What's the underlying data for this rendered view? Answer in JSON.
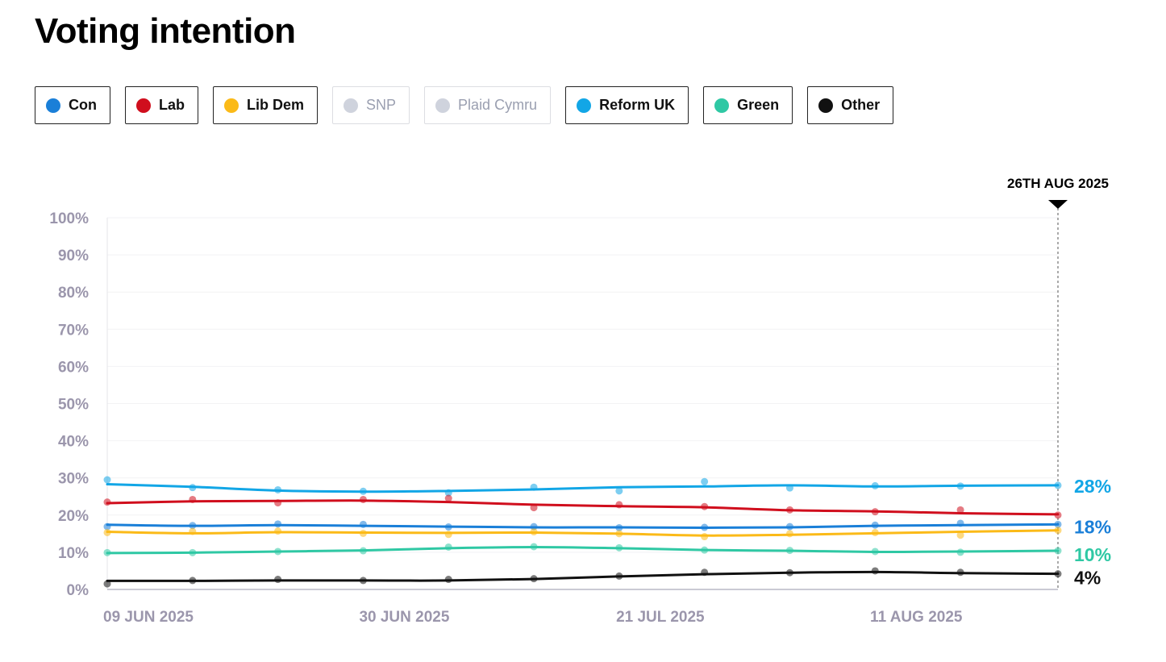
{
  "title": "Voting intention",
  "legend": [
    {
      "key": "con",
      "label": "Con",
      "color": "#1a7fd8",
      "active": true
    },
    {
      "key": "lab",
      "label": "Lab",
      "color": "#d00e1d",
      "active": true
    },
    {
      "key": "libdem",
      "label": "Lib Dem",
      "color": "#fbba18",
      "active": true
    },
    {
      "key": "snp",
      "label": "SNP",
      "color": "#cfd3dd",
      "active": false
    },
    {
      "key": "plaid",
      "label": "Plaid Cymru",
      "color": "#cfd3dd",
      "active": false
    },
    {
      "key": "reform",
      "label": "Reform UK",
      "color": "#12a6e6",
      "active": true
    },
    {
      "key": "green",
      "label": "Green",
      "color": "#2fc8a4",
      "active": true
    },
    {
      "key": "other",
      "label": "Other",
      "color": "#111111",
      "active": true
    }
  ],
  "chart_data": {
    "type": "line",
    "title": "",
    "xlabel": "",
    "ylabel": "",
    "ylim": [
      0,
      100
    ],
    "yticks": [
      "0%",
      "10%",
      "20%",
      "30%",
      "40%",
      "50%",
      "60%",
      "70%",
      "80%",
      "90%",
      "100%"
    ],
    "x_range": [
      "2025-06-09",
      "2025-08-26"
    ],
    "xticks": [
      {
        "date": "2025-06-09",
        "label": "09 JUN 2025"
      },
      {
        "date": "2025-06-30",
        "label": "30 JUN 2025"
      },
      {
        "date": "2025-07-21",
        "label": "21 JUL 2025"
      },
      {
        "date": "2025-08-11",
        "label": "11 AUG 2025"
      }
    ],
    "marker": {
      "date": "2025-08-26",
      "label": "26TH AUG 2025"
    },
    "x": [
      "2025-06-09",
      "2025-06-16",
      "2025-06-23",
      "2025-06-30",
      "2025-07-07",
      "2025-07-14",
      "2025-07-21",
      "2025-07-28",
      "2025-08-04",
      "2025-08-11",
      "2025-08-18",
      "2025-08-26"
    ],
    "series": [
      {
        "key": "reform",
        "color": "#12a6e6",
        "end_label": "28%",
        "trend": [
          28.3,
          27.6,
          26.6,
          26.3,
          26.5,
          26.9,
          27.5,
          27.7,
          28.0,
          27.7,
          27.9,
          28.0
        ],
        "points": [
          29.5,
          27.4,
          26.8,
          26.4,
          26.0,
          27.5,
          26.5,
          29.0,
          27.3,
          27.9,
          27.8,
          28.0
        ]
      },
      {
        "key": "lab",
        "color": "#d00e1d",
        "end_label": "",
        "trend": [
          23.2,
          23.7,
          23.8,
          23.9,
          23.5,
          22.8,
          22.4,
          22.1,
          21.3,
          21.0,
          20.5,
          20.2
        ],
        "points": [
          23.5,
          24.2,
          23.3,
          24.2,
          24.5,
          22.0,
          22.8,
          22.3,
          21.4,
          20.9,
          21.4,
          20.0
        ]
      },
      {
        "key": "con",
        "color": "#1a7fd8",
        "end_label": "18%",
        "trend": [
          17.4,
          17.1,
          17.3,
          17.1,
          16.9,
          16.7,
          16.7,
          16.6,
          16.7,
          17.1,
          17.3,
          17.5
        ],
        "points": [
          16.9,
          17.2,
          17.6,
          17.5,
          16.8,
          16.9,
          16.6,
          16.7,
          16.9,
          17.3,
          17.8,
          17.5
        ]
      },
      {
        "key": "libdem",
        "color": "#fbba18",
        "end_label": "",
        "trend": [
          15.5,
          15.1,
          15.4,
          15.3,
          15.2,
          15.3,
          15.0,
          14.5,
          14.7,
          15.1,
          15.5,
          15.9
        ],
        "points": [
          15.3,
          15.6,
          15.7,
          15.1,
          14.8,
          15.5,
          15.0,
          14.2,
          15.0,
          15.3,
          14.6,
          15.9
        ]
      },
      {
        "key": "green",
        "color": "#2fc8a4",
        "end_label": "10%",
        "trend": [
          9.8,
          9.9,
          10.2,
          10.5,
          11.1,
          11.4,
          11.1,
          10.6,
          10.4,
          10.1,
          10.2,
          10.4
        ],
        "points": [
          9.9,
          9.9,
          10.2,
          10.4,
          11.4,
          11.5,
          11.2,
          10.6,
          10.5,
          10.2,
          10.0,
          10.4
        ]
      },
      {
        "key": "other",
        "color": "#111111",
        "end_label": "4%",
        "trend": [
          2.3,
          2.3,
          2.4,
          2.4,
          2.4,
          2.8,
          3.5,
          4.1,
          4.5,
          4.7,
          4.4,
          4.2
        ],
        "points": [
          1.5,
          2.4,
          2.7,
          2.4,
          2.7,
          2.9,
          3.6,
          4.6,
          4.5,
          5.0,
          4.6,
          4.2
        ]
      }
    ]
  }
}
